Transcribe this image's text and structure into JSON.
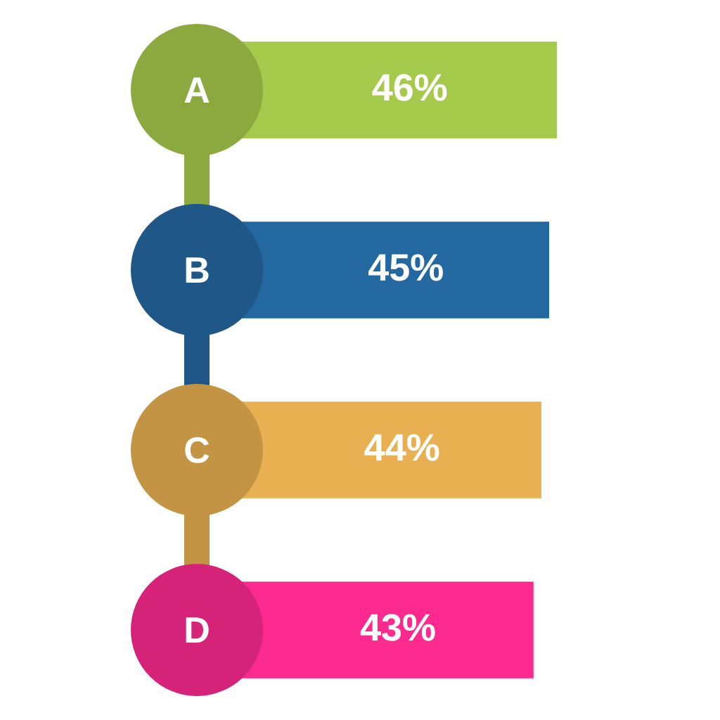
{
  "chart_data": {
    "type": "bar",
    "orientation": "horizontal",
    "categories": [
      "A",
      "B",
      "C",
      "D"
    ],
    "values": [
      46,
      45,
      44,
      43
    ],
    "colors": [
      "#a5c94a",
      "#2468a2",
      "#e8b050",
      "#fc2a8f"
    ],
    "value_labels": [
      "46%",
      "45%",
      "44%",
      "43%"
    ],
    "legend": false
  }
}
